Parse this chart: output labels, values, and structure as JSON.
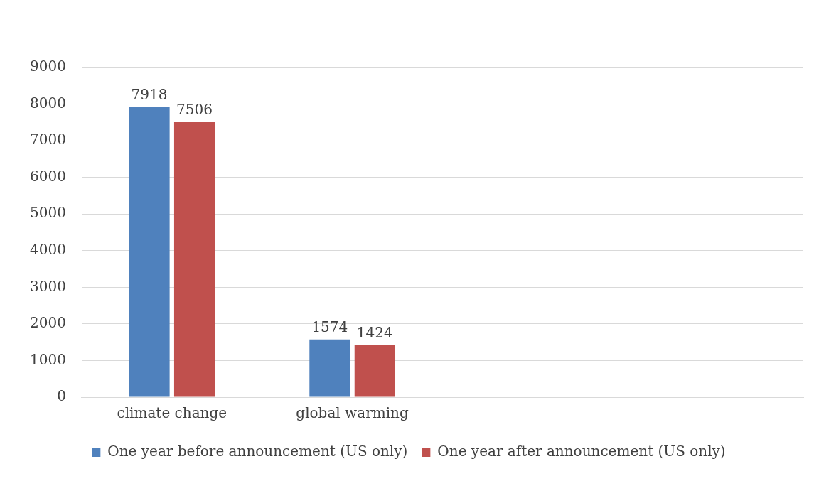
{
  "chart_data": {
    "type": "bar",
    "categories": [
      "climate change",
      "global warming",
      null,
      null
    ],
    "series": [
      {
        "name": "One year before announcement (US only)",
        "color": "#4f81bd",
        "values": [
          7918,
          1574,
          null,
          null
        ]
      },
      {
        "name": "One year after announcement (US only)",
        "color": "#c0504d",
        "values": [
          7506,
          1424,
          null,
          null
        ]
      }
    ],
    "ylim": [
      0,
      9000
    ],
    "yticks": [
      0,
      1000,
      2000,
      3000,
      4000,
      5000,
      6000,
      7000,
      8000,
      9000
    ],
    "grid": "y",
    "legend": "bottom",
    "data_labels": true
  }
}
